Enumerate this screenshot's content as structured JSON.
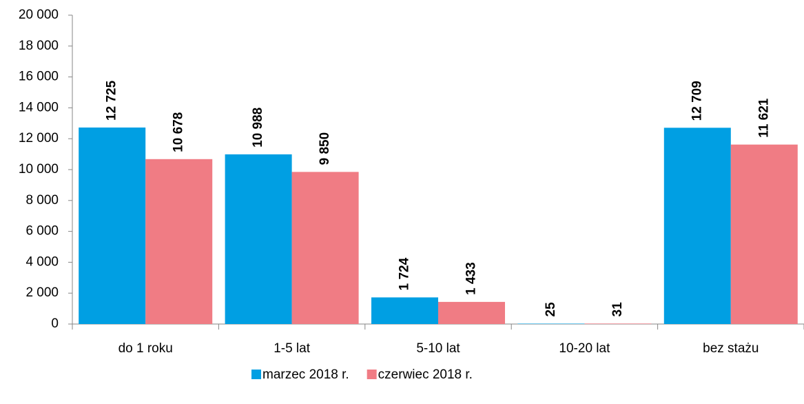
{
  "chart_data": {
    "type": "bar",
    "categories": [
      "do 1 roku",
      "1-5 lat",
      "5-10 lat",
      "10-20 lat",
      "bez stażu"
    ],
    "series": [
      {
        "name": "marzec 2018 r.",
        "color": "#009fe3",
        "values": [
          12725,
          10988,
          1724,
          25,
          12709
        ],
        "value_labels": [
          "12 725",
          "10 988",
          "1 724",
          "25",
          "12 709"
        ]
      },
      {
        "name": "czerwiec 2018 r.",
        "color": "#f07c84",
        "values": [
          10678,
          9850,
          1433,
          31,
          11621
        ],
        "value_labels": [
          "10 678",
          "9 850",
          "1 433",
          "31",
          "11 621"
        ]
      }
    ],
    "ylim": [
      0,
      20000
    ],
    "yticks": [
      0,
      {
        "value": 2000,
        "label": "2 000"
      },
      {
        "value": 4000,
        "label": "4 000"
      },
      {
        "value": 6000,
        "label": "6 000"
      },
      {
        "value": 8000,
        "label": "8 000"
      },
      {
        "value": 10000,
        "label": "10 000"
      },
      {
        "value": 12000,
        "label": "12 000"
      },
      {
        "value": 14000,
        "label": "14 000"
      },
      {
        "value": 16000,
        "label": "16 000"
      },
      {
        "value": 18000,
        "label": "18 000"
      },
      {
        "value": 20000,
        "label": "20 000"
      }
    ],
    "grid": false,
    "legend": "bottom"
  }
}
